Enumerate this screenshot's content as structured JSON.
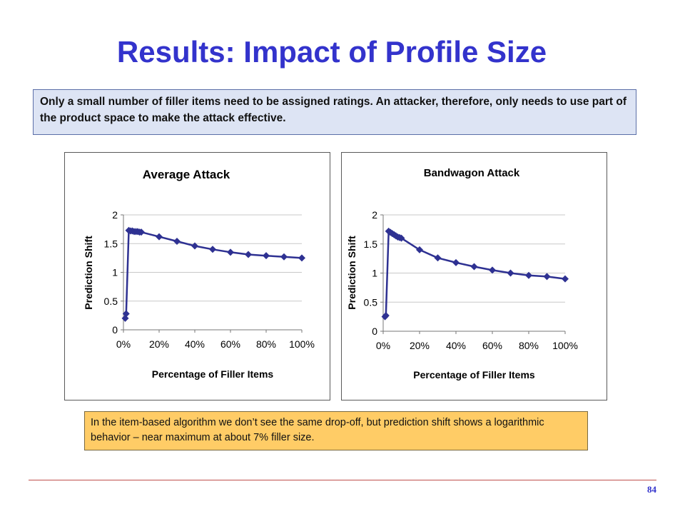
{
  "slide": {
    "title": "Results: Impact of Profile Size",
    "note_top": "Only a small number of filler items need to be assigned ratings. An attacker, therefore, only needs to use part of the product space to make the attack effective.",
    "note_bottom": "In the item-based algorithm we don’t see the same drop-off, but prediction shift shows a logarithmic behavior – near maximum at about 7% filler size.",
    "page_number": "84"
  },
  "colors": {
    "series": "#2e3192",
    "title": "#3333cc",
    "note_top_bg": "#dde4f4",
    "note_bottom_bg": "#ffcc66"
  },
  "chart_data": [
    {
      "type": "line",
      "title": "Average Attack",
      "xlabel": "Percentage of Filler Items",
      "ylabel": "Prediction Shift",
      "xlim": [
        0,
        100
      ],
      "ylim": [
        0,
        2
      ],
      "x_ticks": [
        0,
        20,
        40,
        60,
        80,
        100
      ],
      "x_tick_labels": [
        "0%",
        "20%",
        "40%",
        "60%",
        "80%",
        "100%"
      ],
      "y_ticks": [
        0,
        0.5,
        1,
        1.5,
        2
      ],
      "y_tick_labels": [
        "0",
        "0.5",
        "1",
        "1.5",
        "2"
      ],
      "grid": true,
      "legend": "none",
      "series": [
        {
          "x": [
            1,
            1.5,
            3,
            4,
            5,
            6,
            7,
            8,
            9,
            10,
            20,
            30,
            40,
            50,
            60,
            70,
            80,
            90,
            100
          ],
          "y": [
            0.2,
            0.28,
            1.73,
            1.72,
            1.72,
            1.71,
            1.71,
            1.71,
            1.7,
            1.7,
            1.62,
            1.54,
            1.46,
            1.4,
            1.35,
            1.31,
            1.29,
            1.27,
            1.25
          ]
        }
      ]
    },
    {
      "type": "line",
      "title": "Bandwagon Attack",
      "xlabel": "Percentage of Filler Items",
      "ylabel": "Prediction Shift",
      "xlim": [
        0,
        100
      ],
      "ylim": [
        0,
        2
      ],
      "x_ticks": [
        0,
        20,
        40,
        60,
        80,
        100
      ],
      "x_tick_labels": [
        "0%",
        "20%",
        "40%",
        "60%",
        "80%",
        "100%"
      ],
      "y_ticks": [
        0,
        0.5,
        1,
        1.5,
        2
      ],
      "y_tick_labels": [
        "0",
        "0.5",
        "1",
        "1.5",
        "2"
      ],
      "grid": true,
      "legend": "none",
      "series": [
        {
          "x": [
            1,
            1.5,
            3,
            4,
            5,
            6,
            7,
            8,
            9,
            10,
            20,
            30,
            40,
            50,
            60,
            70,
            80,
            90,
            100
          ],
          "y": [
            0.25,
            0.27,
            1.72,
            1.7,
            1.68,
            1.66,
            1.64,
            1.62,
            1.61,
            1.6,
            1.4,
            1.26,
            1.18,
            1.11,
            1.05,
            1.0,
            0.96,
            0.94,
            0.9
          ]
        }
      ]
    }
  ]
}
